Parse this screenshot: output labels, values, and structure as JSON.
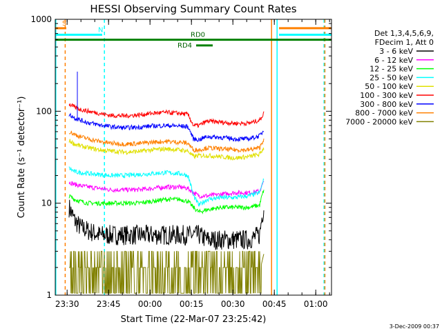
{
  "chart_data": {
    "type": "line",
    "title": "HESSI Observing Summary Count Rates",
    "xlabel": "Start Time (22-Mar-07 23:25:42)",
    "ylabel": "Count Rate (s⁻¹ detector⁻¹)",
    "y_scale": "log",
    "ylim": [
      1,
      1000
    ],
    "xlim": [
      "23:25:42",
      "01:05:42"
    ],
    "x_units": "minutes after 23:25:42",
    "x_ticks": [
      {
        "t": 4.3,
        "label": "23:30"
      },
      {
        "t": 19.3,
        "label": "23:45"
      },
      {
        "t": 34.3,
        "label": "00:00"
      },
      {
        "t": 49.3,
        "label": "00:15"
      },
      {
        "t": 64.3,
        "label": "00:30"
      },
      {
        "t": 79.3,
        "label": "00:45"
      },
      {
        "t": 94.3,
        "label": "01:00"
      }
    ],
    "y_ticks": [
      {
        "v": 1,
        "label": "1"
      },
      {
        "v": 10,
        "label": "10"
      },
      {
        "v": 100,
        "label": "100"
      },
      {
        "v": 1000,
        "label": "1000"
      }
    ],
    "legend": {
      "header": [
        "Det 1,3,4,5,6,9,",
        "FDecim 1, Att 0"
      ],
      "placement": "right"
    },
    "series": [
      {
        "name": "3 - 6 keV",
        "color": "#000000",
        "x": [
          5,
          7,
          9,
          12,
          16,
          20,
          25,
          30,
          35,
          40,
          45,
          48,
          50,
          52,
          55,
          60,
          65,
          70,
          74,
          75.5
        ],
        "y": [
          9,
          6.5,
          5.5,
          5,
          4.5,
          4.5,
          4.5,
          4.5,
          4.5,
          4.5,
          4.5,
          4.5,
          4.5,
          4.5,
          4,
          4,
          4,
          4,
          4.5,
          9
        ]
      },
      {
        "name": "6 - 12 keV",
        "color": "#ff00ff",
        "x": [
          5,
          7,
          9,
          12,
          16,
          20,
          25,
          30,
          35,
          40,
          45,
          48,
          50,
          52,
          55,
          60,
          65,
          70,
          74,
          75.5
        ],
        "y": [
          17,
          16,
          15.5,
          15,
          14.5,
          14,
          14,
          14,
          14.5,
          15,
          15,
          14.5,
          13,
          12,
          12,
          12.5,
          13,
          13,
          13.5,
          17
        ]
      },
      {
        "name": "12 - 25 keV",
        "color": "#00ff00",
        "x": [
          5,
          7,
          9,
          12,
          16,
          20,
          25,
          30,
          35,
          40,
          45,
          48,
          50,
          52,
          55,
          60,
          65,
          70,
          74,
          75.5
        ],
        "y": [
          12,
          11,
          10.5,
          10,
          10,
          10,
          10,
          10,
          10.5,
          11,
          11,
          10.5,
          9,
          8,
          8.5,
          9,
          9,
          9,
          9.5,
          14
        ]
      },
      {
        "name": "25 - 50 keV",
        "color": "#00ffff",
        "x": [
          5,
          7,
          9,
          12,
          16,
          20,
          25,
          30,
          35,
          40,
          45,
          48,
          50,
          52,
          55,
          60,
          65,
          70,
          74,
          75.5
        ],
        "y": [
          24,
          22,
          21.5,
          21,
          20.5,
          20,
          20,
          20.5,
          21,
          21.5,
          21,
          20,
          12,
          9.5,
          11,
          11.5,
          11.5,
          12,
          13,
          18
        ]
      },
      {
        "name": "50 - 100 keV",
        "color": "#e0e000",
        "x": [
          5,
          7,
          9,
          12,
          16,
          20,
          25,
          30,
          35,
          40,
          45,
          48,
          50,
          52,
          55,
          60,
          65,
          70,
          74,
          75.5
        ],
        "y": [
          48,
          44,
          42,
          40,
          38,
          37,
          36,
          36.5,
          38,
          39,
          38,
          37,
          32,
          33,
          33,
          32,
          31,
          32,
          34,
          40
        ]
      },
      {
        "name": "100 - 300 keV",
        "color": "#ff0000",
        "x": [
          5,
          7,
          9,
          12,
          16,
          20,
          25,
          30,
          35,
          40,
          45,
          48,
          50,
          52,
          55,
          60,
          65,
          70,
          74,
          75.5
        ],
        "y": [
          120,
          110,
          105,
          100,
          95,
          90,
          89,
          91,
          95,
          97,
          95,
          92,
          70,
          70,
          78,
          76,
          74,
          74,
          80,
          95
        ]
      },
      {
        "name": "300 - 800 keV",
        "color": "#0000ff",
        "x": [
          5,
          7,
          9,
          12,
          16,
          20,
          25,
          30,
          35,
          40,
          45,
          48,
          50,
          52,
          55,
          60,
          65,
          70,
          74,
          75.5
        ],
        "y": [
          92,
          85,
          80,
          75,
          71,
          68,
          66,
          67,
          69,
          70,
          69,
          68,
          50,
          49,
          53,
          52,
          50,
          50,
          54,
          62
        ]
      },
      {
        "name": "800 - 7000 keV",
        "color": "#ff8000",
        "x": [
          5,
          7,
          9,
          12,
          16,
          20,
          25,
          30,
          35,
          40,
          45,
          48,
          50,
          52,
          55,
          60,
          65,
          70,
          74,
          75.5
        ],
        "y": [
          60,
          56,
          53,
          50,
          47,
          45,
          44,
          44.5,
          46,
          47,
          46,
          45,
          38,
          38,
          40,
          39,
          38,
          38,
          40,
          50
        ]
      },
      {
        "name": "7000 - 20000 keV",
        "color": "#808000",
        "x": [
          5,
          7,
          9,
          12,
          16,
          20,
          25,
          30,
          35,
          40,
          45,
          48,
          50,
          52,
          55,
          60,
          65,
          70,
          74,
          75.5
        ],
        "y": [
          2,
          1.6,
          1.6,
          1.6,
          1.7,
          1.7,
          1.6,
          1.6,
          1.7,
          1.7,
          1.7,
          1.7,
          1.6,
          1.6,
          1.6,
          1.6,
          1.6,
          1.6,
          1.7,
          2.8
        ]
      }
    ],
    "spike": {
      "series": "300 - 800 keV",
      "x": 8,
      "y": 270
    },
    "bars": [
      {
        "label": "S",
        "color": "#ff8000",
        "start": 0,
        "end": 4,
        "level": 800
      },
      {
        "label": "",
        "color": "#ff8000",
        "start": 81,
        "end": 100,
        "level": 800
      },
      {
        "label": "N",
        "color": "#00ffff",
        "start": 0,
        "end": 17,
        "level": 680
      },
      {
        "label": "",
        "color": "#00ffff",
        "start": 81,
        "end": 100,
        "level": 680
      },
      {
        "label": "RD0",
        "color": "#008000",
        "start": 0,
        "end": 100,
        "level": 600
      },
      {
        "label": "RD4",
        "color": "#008000",
        "start": 51,
        "end": 57,
        "level": 520
      }
    ],
    "vlines": [
      {
        "x": 0.2,
        "color": "#00ffff",
        "style": "solid"
      },
      {
        "x": 3.6,
        "color": "#ff8000",
        "style": "dashed"
      },
      {
        "x": 17.8,
        "color": "#00ffff",
        "style": "dashed"
      },
      {
        "x": 78.3,
        "color": "#ff8000",
        "style": "solid"
      },
      {
        "x": 80.3,
        "color": "#00ffff",
        "style": "solid"
      },
      {
        "x": 97.3,
        "color": "#00ffff",
        "style": "dashed"
      },
      {
        "x": 97.6,
        "color": "#ff8000",
        "style": "dashed"
      }
    ],
    "timestamp": "3-Dec-2009 00:37"
  }
}
